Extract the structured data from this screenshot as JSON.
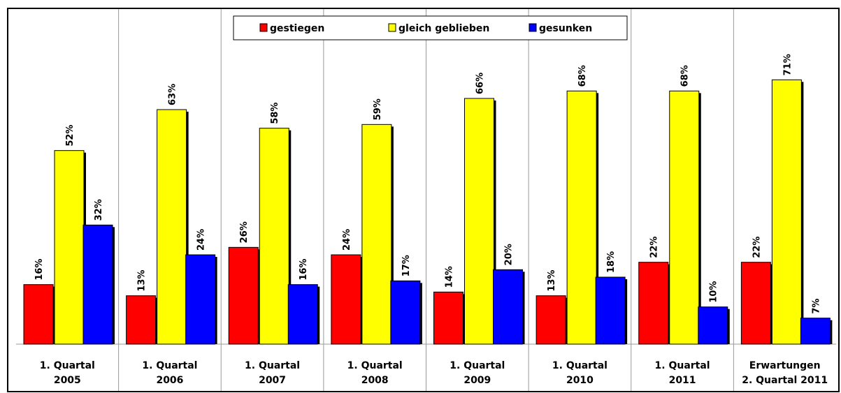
{
  "chart_data": {
    "type": "bar",
    "categories": [
      [
        "1. Quartal",
        "2005"
      ],
      [
        "1. Quartal",
        "2006"
      ],
      [
        "1. Quartal",
        "2007"
      ],
      [
        "1. Quartal",
        "2008"
      ],
      [
        "1. Quartal",
        "2009"
      ],
      [
        "1. Quartal",
        "2010"
      ],
      [
        "1. Quartal",
        "2011"
      ],
      [
        "Erwartungen",
        "2. Quartal 2011"
      ]
    ],
    "series": [
      {
        "name": "gestiegen",
        "color": "#ff0000",
        "values": [
          16,
          13,
          26,
          24,
          14,
          13,
          22,
          22
        ],
        "value_labels": [
          "16%",
          "13%",
          "26%",
          "24%",
          "14%",
          "13%",
          "22%",
          "22%"
        ]
      },
      {
        "name": "gleich geblieben",
        "color": "#ffff00",
        "values": [
          52,
          63,
          58,
          59,
          66,
          68,
          68,
          71
        ],
        "value_labels": [
          "52%",
          "63%",
          "58%",
          "59%",
          "66%",
          "68%",
          "68%",
          "71%"
        ]
      },
      {
        "name": "gesunken",
        "color": "#0000ff",
        "values": [
          32,
          24,
          16,
          17,
          20,
          18,
          10,
          7
        ],
        "value_labels": [
          "32%",
          "24%",
          "16%",
          "17%",
          "20%",
          "18%",
          "10%",
          "7%"
        ]
      }
    ],
    "ylim": [
      0,
      90
    ],
    "legend": "top"
  }
}
